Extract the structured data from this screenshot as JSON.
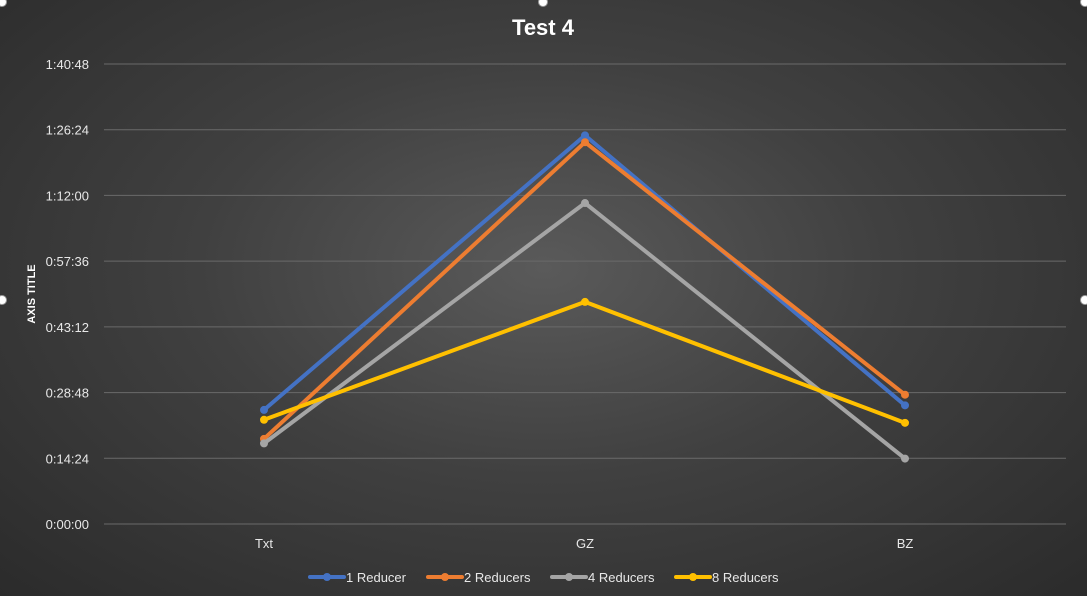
{
  "chart_data": {
    "type": "line",
    "title": "Test 4",
    "ylabel": "AXIS TITLE",
    "xlabel": "",
    "categories": [
      "Txt",
      "GZ",
      "BZ"
    ],
    "y_unit": "seconds",
    "ylim": [
      0,
      6048
    ],
    "y_tick_labels": [
      "0:00:00",
      "0:14:24",
      "0:28:48",
      "0:43:12",
      "0:57:36",
      "1:12:00",
      "1:26:24",
      "1:40:48"
    ],
    "series": [
      {
        "name": "1 Reducer",
        "color": "#4472C4",
        "values": [
          1500,
          5110,
          1560
        ]
      },
      {
        "name": "2 Reducers",
        "color": "#ED7D31",
        "values": [
          1120,
          5020,
          1700
        ]
      },
      {
        "name": "4 Reducers",
        "color": "#A5A5A5",
        "values": [
          1060,
          4220,
          860
        ]
      },
      {
        "name": "8 Reducers",
        "color": "#FFC000",
        "values": [
          1370,
          2920,
          1330
        ]
      }
    ],
    "grid": true,
    "legend_position": "bottom"
  }
}
